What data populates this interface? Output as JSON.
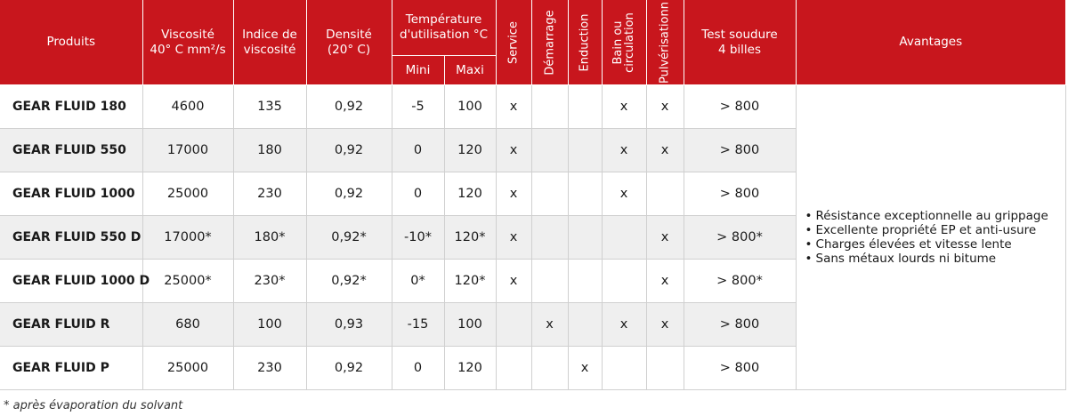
{
  "headers": {
    "produits": "Produits",
    "viscosite_l1": "Viscosité",
    "viscosite_l2": "40° C mm²/s",
    "indice_l1": "Indice de",
    "indice_l2": "viscosité",
    "densite_l1": "Densité",
    "densite_l2": "(20° C)",
    "temperature_l1": "Température",
    "temperature_l2": "d'utilisation °C",
    "mini": "Mini",
    "maxi": "Maxi",
    "service": "Service",
    "demarrage": "Démarrage",
    "enduction": "Enduction",
    "bain_l1": "Bain ou",
    "bain_l2": "circulation",
    "pulverisation": "Pulvérisationn",
    "test_l1": "Test soudure",
    "test_l2": "4 billes",
    "avantages": "Avantages"
  },
  "rows": [
    {
      "produit": "GEAR FLUID 180",
      "viscosite": "4600",
      "indice": "135",
      "densite": "0,92",
      "mini": "-5",
      "maxi": "100",
      "service": "x",
      "demarrage": "",
      "enduction": "",
      "bain": "x",
      "pulverisation": "x",
      "test": "> 800"
    },
    {
      "produit": "GEAR FLUID 550",
      "viscosite": "17000",
      "indice": "180",
      "densite": "0,92",
      "mini": "0",
      "maxi": "120",
      "service": "x",
      "demarrage": "",
      "enduction": "",
      "bain": "x",
      "pulverisation": "x",
      "test": "> 800"
    },
    {
      "produit": "GEAR FLUID 1000",
      "viscosite": "25000",
      "indice": "230",
      "densite": "0,92",
      "mini": "0",
      "maxi": "120",
      "service": "x",
      "demarrage": "",
      "enduction": "",
      "bain": "x",
      "pulverisation": "",
      "test": "> 800"
    },
    {
      "produit": "GEAR FLUID 550 D",
      "viscosite": "17000*",
      "indice": "180*",
      "densite": "0,92*",
      "mini": "-10*",
      "maxi": "120*",
      "service": "x",
      "demarrage": "",
      "enduction": "",
      "bain": "",
      "pulverisation": "x",
      "test": "> 800*"
    },
    {
      "produit": "GEAR FLUID 1000 D",
      "viscosite": "25000*",
      "indice": "230*",
      "densite": "0,92*",
      "mini": "0*",
      "maxi": "120*",
      "service": "x",
      "demarrage": "",
      "enduction": "",
      "bain": "",
      "pulverisation": "x",
      "test": "> 800*"
    },
    {
      "produit": "GEAR FLUID R",
      "viscosite": "680",
      "indice": "100",
      "densite": "0,93",
      "mini": "-15",
      "maxi": "100",
      "service": "",
      "demarrage": "x",
      "enduction": "",
      "bain": "x",
      "pulverisation": "x",
      "test": "> 800"
    },
    {
      "produit": "GEAR FLUID P",
      "viscosite": "25000",
      "indice": "230",
      "densite": "0,92",
      "mini": "0",
      "maxi": "120",
      "service": "",
      "demarrage": "",
      "enduction": "x",
      "bain": "",
      "pulverisation": "",
      "test": "> 800"
    }
  ],
  "avantages": [
    "Résistance exceptionnelle au grippage",
    "Excellente propriété EP et anti-usure",
    "Charges élevées et vitesse lente",
    "Sans métaux lourds ni bitume"
  ],
  "footnote": "* après évaporation du solvant",
  "colors": {
    "header_bg": "#c8161d",
    "header_text": "#ffffff",
    "stripe": "#efefef",
    "grid": "#d0d0d0"
  }
}
